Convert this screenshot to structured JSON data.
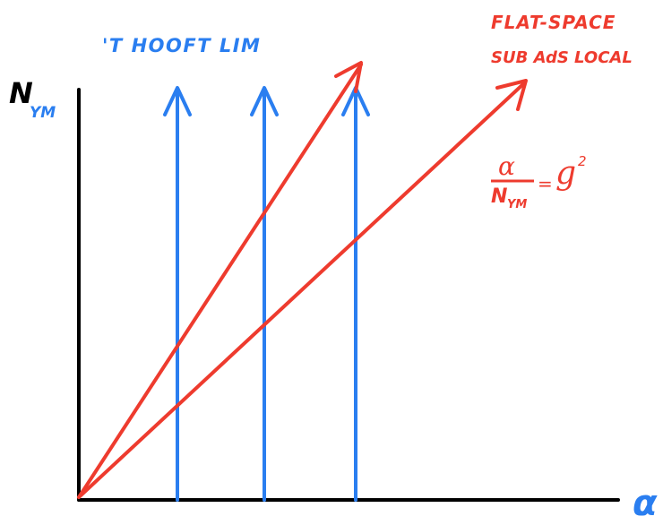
{
  "axes": {
    "y_label_main": "N",
    "y_label_sub": "YM",
    "x_label": "α",
    "axis_color": "#000000"
  },
  "annotations": {
    "thooft_label": "'T HOOFT LIM",
    "flat_space_line1": "FLAT-SPACE",
    "flat_space_line2": "SUB AdS LOCAL",
    "formula_numerator": "α",
    "formula_denominator_main": "N",
    "formula_denominator_sub": "YM",
    "formula_rhs_symbol": "g",
    "formula_rhs_exponent": "2",
    "formula_equals": "="
  },
  "colors": {
    "blue": "#2a7ef0",
    "red": "#ee3b2e",
    "black": "#000000"
  }
}
